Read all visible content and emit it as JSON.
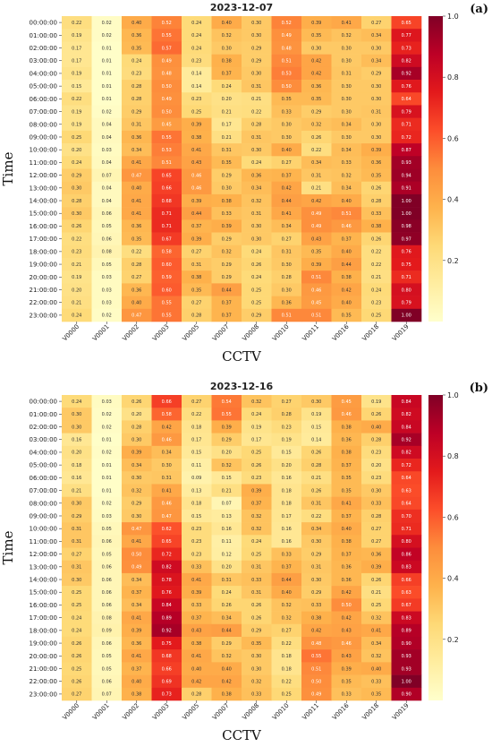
{
  "colors": {
    "scale": [
      "#ffffcc",
      "#ffeda0",
      "#fed976",
      "#feb24c",
      "#fd8d3c",
      "#fc4e2a",
      "#e31a1c",
      "#bd0026",
      "#800026"
    ]
  },
  "chart_data": [
    {
      "type": "heatmap",
      "title": "2023-12-07",
      "panel_label": "(a)",
      "xlabel": "CCTV",
      "ylabel": "Time",
      "x": [
        "V0000",
        "V0001",
        "V0002",
        "V0003",
        "V0005",
        "V0007",
        "V0008",
        "V0010",
        "V0011",
        "V0016",
        "V0018",
        "V0019"
      ],
      "y": [
        "00:00:00",
        "01:00:00",
        "02:00:00",
        "03:00:00",
        "04:00:00",
        "05:00:00",
        "06:00:00",
        "07:00:00",
        "08:00:00",
        "09:00:00",
        "10:00:00",
        "11:00:00",
        "12:00:00",
        "13:00:00",
        "14:00:00",
        "15:00:00",
        "16:00:00",
        "17:00:00",
        "18:00:00",
        "19:00:00",
        "20:00:00",
        "21:00:00",
        "22:00:00",
        "23:00:00"
      ],
      "values": [
        [
          "0.22",
          "0.02",
          "0.40",
          "0.52",
          "0.24",
          "0.40",
          "0.30",
          "0.52",
          "0.39",
          "0.41",
          "0.27",
          "0.65"
        ],
        [
          "0.19",
          "0.02",
          "0.36",
          "0.55",
          "0.24",
          "0.32",
          "0.30",
          "0.49",
          "0.35",
          "0.32",
          "0.34",
          "0.77"
        ],
        [
          "0.17",
          "0.01",
          "0.35",
          "0.57",
          "0.24",
          "0.30",
          "0.29",
          "0.48",
          "0.30",
          "0.30",
          "0.30",
          "0.73"
        ],
        [
          "0.17",
          "0.01",
          "0.24",
          "0.49",
          "0.23",
          "0.38",
          "0.29",
          "0.51",
          "0.42",
          "0.30",
          "0.34",
          "0.82"
        ],
        [
          "0.19",
          "0.01",
          "0.23",
          "0.48",
          "0.14",
          "0.37",
          "0.30",
          "0.53",
          "0.42",
          "0.31",
          "0.29",
          "0.92"
        ],
        [
          "0.15",
          "0.01",
          "0.28",
          "0.50",
          "0.14",
          "0.24",
          "0.31",
          "0.50",
          "0.36",
          "0.30",
          "0.30",
          "0.76"
        ],
        [
          "0.22",
          "0.01",
          "0.28",
          "0.49",
          "0.23",
          "0.20",
          "0.21",
          "0.35",
          "0.35",
          "0.30",
          "0.30",
          "0.64"
        ],
        [
          "0.19",
          "0.02",
          "0.29",
          "0.50",
          "0.25",
          "0.21",
          "0.22",
          "0.33",
          "0.29",
          "0.30",
          "0.31",
          "0.79"
        ],
        [
          "0.19",
          "0.04",
          "0.31",
          "0.45",
          "0.39",
          "0.17",
          "0.28",
          "0.30",
          "0.32",
          "0.34",
          "0.30",
          "0.71"
        ],
        [
          "0.25",
          "0.04",
          "0.36",
          "0.55",
          "0.38",
          "0.21",
          "0.31",
          "0.30",
          "0.26",
          "0.30",
          "0.30",
          "0.72"
        ],
        [
          "0.20",
          "0.03",
          "0.34",
          "0.53",
          "0.41",
          "0.31",
          "0.30",
          "0.40",
          "0.22",
          "0.34",
          "0.39",
          "0.87"
        ],
        [
          "0.24",
          "0.04",
          "0.41",
          "0.51",
          "0.43",
          "0.35",
          "0.24",
          "0.27",
          "0.34",
          "0.33",
          "0.36",
          "0.93"
        ],
        [
          "0.29",
          "0.07",
          "0.47",
          "0.65",
          "0.46",
          "0.29",
          "0.36",
          "0.37",
          "0.31",
          "0.32",
          "0.35",
          "0.94"
        ],
        [
          "0.30",
          "0.04",
          "0.40",
          "0.66",
          "0.46",
          "0.30",
          "0.34",
          "0.42",
          "0.21",
          "0.34",
          "0.26",
          "0.91"
        ],
        [
          "0.28",
          "0.04",
          "0.41",
          "0.68",
          "0.39",
          "0.38",
          "0.32",
          "0.44",
          "0.42",
          "0.40",
          "0.28",
          "1.00"
        ],
        [
          "0.30",
          "0.06",
          "0.41",
          "0.71",
          "0.44",
          "0.33",
          "0.31",
          "0.41",
          "0.49",
          "0.51",
          "0.33",
          "1.00"
        ],
        [
          "0.26",
          "0.05",
          "0.36",
          "0.71",
          "0.37",
          "0.39",
          "0.30",
          "0.34",
          "0.49",
          "0.46",
          "0.38",
          "0.98"
        ],
        [
          "0.22",
          "0.06",
          "0.35",
          "0.67",
          "0.39",
          "0.29",
          "0.30",
          "0.27",
          "0.43",
          "0.37",
          "0.26",
          "0.97"
        ],
        [
          "0.23",
          "0.08",
          "0.22",
          "0.58",
          "0.27",
          "0.32",
          "0.24",
          "0.31",
          "0.35",
          "0.40",
          "0.22",
          "0.76"
        ],
        [
          "0.21",
          "0.05",
          "0.28",
          "0.60",
          "0.31",
          "0.29",
          "0.26",
          "0.30",
          "0.39",
          "0.44",
          "0.22",
          "0.75"
        ],
        [
          "0.19",
          "0.03",
          "0.27",
          "0.59",
          "0.38",
          "0.29",
          "0.24",
          "0.28",
          "0.51",
          "0.38",
          "0.21",
          "0.71"
        ],
        [
          "0.20",
          "0.03",
          "0.36",
          "0.60",
          "0.35",
          "0.44",
          "0.25",
          "0.30",
          "0.46",
          "0.42",
          "0.24",
          "0.80"
        ],
        [
          "0.21",
          "0.03",
          "0.40",
          "0.55",
          "0.27",
          "0.37",
          "0.25",
          "0.36",
          "0.45",
          "0.40",
          "0.23",
          "0.79"
        ],
        [
          "0.24",
          "0.02",
          "0.47",
          "0.55",
          "0.28",
          "0.37",
          "0.29",
          "0.51",
          "0.51",
          "0.35",
          "0.25",
          "1.00"
        ]
      ],
      "colorbar": {
        "range": [
          0,
          1.0
        ],
        "ticks": [
          "0.2",
          "0.4",
          "0.6",
          "0.8",
          "1.0"
        ]
      }
    },
    {
      "type": "heatmap",
      "title": "2023-12-16",
      "panel_label": "(b)",
      "xlabel": "CCTV",
      "ylabel": "Time",
      "x": [
        "V0000",
        "V0001",
        "V0002",
        "V0003",
        "V0005",
        "V0007",
        "V0008",
        "V0010",
        "V0011",
        "V0016",
        "V0018",
        "V0019"
      ],
      "y": [
        "00:00:00",
        "01:00:00",
        "02:00:00",
        "03:00:00",
        "04:00:00",
        "05:00:00",
        "06:00:00",
        "07:00:00",
        "08:00:00",
        "09:00:00",
        "10:00:00",
        "11:00:00",
        "12:00:00",
        "13:00:00",
        "14:00:00",
        "15:00:00",
        "16:00:00",
        "17:00:00",
        "18:00:00",
        "19:00:00",
        "20:00:00",
        "21:00:00",
        "22:00:00",
        "23:00:00"
      ],
      "values": [
        [
          "0.24",
          "0.03",
          "0.26",
          "0.66",
          "0.27",
          "0.54",
          "0.32",
          "0.27",
          "0.30",
          "0.45",
          "0.19",
          "0.84"
        ],
        [
          "0.30",
          "0.02",
          "0.20",
          "0.58",
          "0.22",
          "0.55",
          "0.24",
          "0.28",
          "0.19",
          "0.46",
          "0.26",
          "0.82"
        ],
        [
          "0.30",
          "0.02",
          "0.28",
          "0.42",
          "0.18",
          "0.39",
          "0.19",
          "0.23",
          "0.15",
          "0.38",
          "0.40",
          "0.84"
        ],
        [
          "0.16",
          "0.01",
          "0.30",
          "0.46",
          "0.17",
          "0.29",
          "0.17",
          "0.19",
          "0.14",
          "0.36",
          "0.28",
          "0.92"
        ],
        [
          "0.20",
          "0.02",
          "0.39",
          "0.34",
          "0.15",
          "0.20",
          "0.25",
          "0.15",
          "0.26",
          "0.38",
          "0.23",
          "0.82"
        ],
        [
          "0.18",
          "0.01",
          "0.34",
          "0.30",
          "0.11",
          "0.32",
          "0.26",
          "0.20",
          "0.28",
          "0.37",
          "0.20",
          "0.72"
        ],
        [
          "0.16",
          "0.01",
          "0.30",
          "0.31",
          "0.09",
          "0.15",
          "0.23",
          "0.16",
          "0.21",
          "0.35",
          "0.23",
          "0.64"
        ],
        [
          "0.21",
          "0.01",
          "0.32",
          "0.41",
          "0.13",
          "0.21",
          "0.39",
          "0.18",
          "0.26",
          "0.35",
          "0.30",
          "0.63"
        ],
        [
          "0.30",
          "0.02",
          "0.29",
          "0.46",
          "0.18",
          "0.07",
          "0.37",
          "0.18",
          "0.31",
          "0.41",
          "0.33",
          "0.64"
        ],
        [
          "0.29",
          "0.03",
          "0.30",
          "0.47",
          "0.15",
          "0.13",
          "0.32",
          "0.17",
          "0.22",
          "0.37",
          "0.28",
          "0.70"
        ],
        [
          "0.31",
          "0.05",
          "0.47",
          "0.62",
          "0.23",
          "0.16",
          "0.32",
          "0.16",
          "0.34",
          "0.40",
          "0.27",
          "0.71"
        ],
        [
          "0.31",
          "0.06",
          "0.41",
          "0.65",
          "0.23",
          "0.11",
          "0.24",
          "0.16",
          "0.30",
          "0.38",
          "0.27",
          "0.80"
        ],
        [
          "0.27",
          "0.05",
          "0.50",
          "0.72",
          "0.23",
          "0.12",
          "0.25",
          "0.33",
          "0.29",
          "0.37",
          "0.36",
          "0.86"
        ],
        [
          "0.31",
          "0.06",
          "0.49",
          "0.82",
          "0.33",
          "0.20",
          "0.31",
          "0.37",
          "0.31",
          "0.36",
          "0.39",
          "0.83"
        ],
        [
          "0.30",
          "0.06",
          "0.34",
          "0.78",
          "0.41",
          "0.31",
          "0.33",
          "0.44",
          "0.30",
          "0.36",
          "0.26",
          "0.66"
        ],
        [
          "0.25",
          "0.06",
          "0.37",
          "0.76",
          "0.39",
          "0.24",
          "0.31",
          "0.40",
          "0.29",
          "0.42",
          "0.21",
          "0.63"
        ],
        [
          "0.25",
          "0.06",
          "0.34",
          "0.84",
          "0.33",
          "0.26",
          "0.26",
          "0.32",
          "0.33",
          "0.50",
          "0.25",
          "0.67"
        ],
        [
          "0.24",
          "0.08",
          "0.41",
          "0.89",
          "0.37",
          "0.34",
          "0.26",
          "0.32",
          "0.38",
          "0.42",
          "0.32",
          "0.83"
        ],
        [
          "0.24",
          "0.09",
          "0.39",
          "0.92",
          "0.43",
          "0.44",
          "0.29",
          "0.27",
          "0.42",
          "0.43",
          "0.41",
          "0.89"
        ],
        [
          "0.26",
          "0.06",
          "0.36",
          "0.75",
          "0.38",
          "0.29",
          "0.35",
          "0.22",
          "0.48",
          "0.46",
          "0.34",
          "0.90"
        ],
        [
          "0.26",
          "0.05",
          "0.41",
          "0.68",
          "0.41",
          "0.32",
          "0.30",
          "0.18",
          "0.55",
          "0.43",
          "0.32",
          "0.93"
        ],
        [
          "0.25",
          "0.05",
          "0.37",
          "0.66",
          "0.40",
          "0.40",
          "0.30",
          "0.18",
          "0.51",
          "0.39",
          "0.40",
          "0.93"
        ],
        [
          "0.26",
          "0.06",
          "0.40",
          "0.69",
          "0.42",
          "0.42",
          "0.32",
          "0.22",
          "0.50",
          "0.35",
          "0.33",
          "1.00"
        ],
        [
          "0.27",
          "0.07",
          "0.38",
          "0.73",
          "0.28",
          "0.38",
          "0.33",
          "0.25",
          "0.49",
          "0.33",
          "0.35",
          "0.90"
        ]
      ],
      "colorbar": {
        "range": [
          0,
          1.0
        ],
        "ticks": [
          "0.2",
          "0.4",
          "0.6",
          "0.8",
          "1.0"
        ]
      }
    }
  ]
}
